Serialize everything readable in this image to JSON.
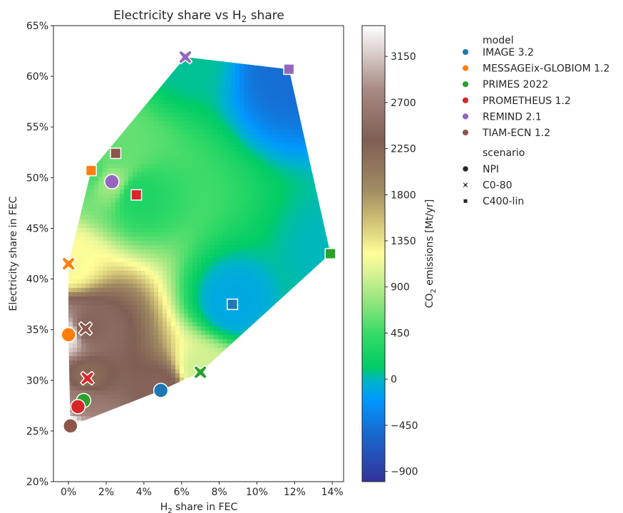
{
  "chart_data": {
    "type": "scatter",
    "title": "Electricity share vs H₂ share",
    "title_main": "Electricity share vs H",
    "title_sub": "2",
    "title_tail": " share",
    "xlabel_main": "H",
    "xlabel_sub": "2",
    "xlabel_tail": " share in FEC",
    "ylabel": "Electricity share in FEC",
    "xlim": [
      -0.008,
      0.146
    ],
    "ylim": [
      0.2,
      0.65
    ],
    "xticks": [
      0,
      0.02,
      0.04,
      0.06,
      0.08,
      0.1,
      0.12,
      0.14
    ],
    "xtick_labels": [
      "0%",
      "2%",
      "4%",
      "6%",
      "8%",
      "10%",
      "12%",
      "14%"
    ],
    "yticks": [
      0.2,
      0.25,
      0.3,
      0.35,
      0.4,
      0.45,
      0.5,
      0.55,
      0.6,
      0.65
    ],
    "ytick_labels": [
      "20%",
      "25%",
      "30%",
      "35%",
      "40%",
      "45%",
      "50%",
      "55%",
      "60%",
      "65%"
    ],
    "grid": false,
    "background": "filled convex hull of points coloured by interpolated CO2 emissions",
    "colorbar": {
      "label_pre": "CO",
      "label_sub": "2",
      "label_post": " emissions [Mt/yr]",
      "range": [
        -1000,
        3450
      ],
      "ticks": [
        -900,
        -450,
        0,
        450,
        900,
        1350,
        1800,
        2250,
        2700,
        3150
      ],
      "tick_labels": [
        "−900",
        "−450",
        "0",
        "450",
        "900",
        "1350",
        "1800",
        "2250",
        "2700",
        "3150"
      ],
      "colormap": "terrain",
      "stops": [
        [
          0.0,
          "#333399"
        ],
        [
          0.1,
          "#1a66cc"
        ],
        [
          0.18,
          "#0099ff"
        ],
        [
          0.22,
          "#00b3cc"
        ],
        [
          0.25,
          "#00cc66"
        ],
        [
          0.32,
          "#33d966"
        ],
        [
          0.4,
          "#99e680"
        ],
        [
          0.47,
          "#e6f599"
        ],
        [
          0.5,
          "#fffe99"
        ],
        [
          0.57,
          "#d1c276"
        ],
        [
          0.64,
          "#a08b62"
        ],
        [
          0.75,
          "#805e54"
        ],
        [
          0.86,
          "#a88a84"
        ],
        [
          0.93,
          "#d3c5c2"
        ],
        [
          1.0,
          "#ffffff"
        ]
      ]
    },
    "legend": {
      "placement": "outside right",
      "model_title": "model",
      "scenario_title": "scenario",
      "models": [
        {
          "name": "IMAGE 3.2",
          "color": "#1f77b4"
        },
        {
          "name": "MESSAGEix-GLOBIOM 1.2",
          "color": "#ff7f0e"
        },
        {
          "name": "PRIMES 2022",
          "color": "#2ca02c"
        },
        {
          "name": "PROMETHEUS 1.2",
          "color": "#d62728"
        },
        {
          "name": "REMIND 2.1",
          "color": "#9467bd"
        },
        {
          "name": "TIAM-ECN 1.2",
          "color": "#8c564b"
        }
      ],
      "scenarios": [
        {
          "name": "NPI",
          "marker": "circle"
        },
        {
          "name": "C0-80",
          "marker": "x"
        },
        {
          "name": "C400-lin",
          "marker": "square"
        }
      ]
    },
    "points": [
      {
        "model": "IMAGE 3.2",
        "scenario": "NPI",
        "x": 0.049,
        "y": 0.29,
        "co2": 2400
      },
      {
        "model": "IMAGE 3.2",
        "scenario": "C400-lin",
        "x": 0.087,
        "y": 0.375,
        "co2": -100
      },
      {
        "model": "MESSAGEix-GLOBIOM 1.2",
        "scenario": "NPI",
        "x": 0.0,
        "y": 0.345,
        "co2": 3300
      },
      {
        "model": "MESSAGEix-GLOBIOM 1.2",
        "scenario": "C0-80",
        "x": 0.0,
        "y": 0.415,
        "co2": 1200
      },
      {
        "model": "MESSAGEix-GLOBIOM 1.2",
        "scenario": "C400-lin",
        "x": 0.012,
        "y": 0.507,
        "co2": 500
      },
      {
        "model": "PRIMES 2022",
        "scenario": "NPI",
        "x": 0.008,
        "y": 0.28,
        "co2": 2600
      },
      {
        "model": "PRIMES 2022",
        "scenario": "C0-80",
        "x": 0.07,
        "y": 0.308,
        "co2": 1000
      },
      {
        "model": "PRIMES 2022",
        "scenario": "C400-lin",
        "x": 0.139,
        "y": 0.425,
        "co2": 0
      },
      {
        "model": "PROMETHEUS 1.2",
        "scenario": "NPI",
        "x": 0.005,
        "y": 0.274,
        "co2": 2800
      },
      {
        "model": "PROMETHEUS 1.2",
        "scenario": "C0-80",
        "x": 0.01,
        "y": 0.302,
        "co2": 2200
      },
      {
        "model": "PROMETHEUS 1.2",
        "scenario": "C400-lin",
        "x": 0.036,
        "y": 0.483,
        "co2": 300
      },
      {
        "model": "REMIND 2.1",
        "scenario": "NPI",
        "x": 0.023,
        "y": 0.496,
        "co2": 800
      },
      {
        "model": "REMIND 2.1",
        "scenario": "C0-80",
        "x": 0.062,
        "y": 0.619,
        "co2": 50
      },
      {
        "model": "REMIND 2.1",
        "scenario": "C400-lin",
        "x": 0.117,
        "y": 0.607,
        "co2": -500
      },
      {
        "model": "TIAM-ECN 1.2",
        "scenario": "NPI",
        "x": 0.001,
        "y": 0.255,
        "co2": 3450
      },
      {
        "model": "TIAM-ECN 1.2",
        "scenario": "C0-80",
        "x": 0.009,
        "y": 0.351,
        "co2": 2400
      },
      {
        "model": "TIAM-ECN 1.2",
        "scenario": "C400-lin",
        "x": 0.025,
        "y": 0.524,
        "co2": 600
      }
    ]
  }
}
